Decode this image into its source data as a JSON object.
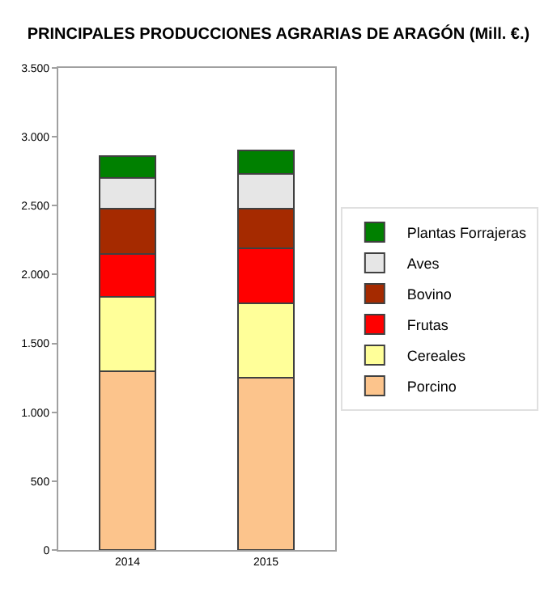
{
  "chart_data": {
    "type": "bar",
    "title": "PRINCIPALES PRODUCCIONES AGRARIAS DE ARAGÓN (Mill. €.)",
    "stacked": true,
    "legend": "right",
    "categories": [
      "2014",
      "2015"
    ],
    "series": [
      {
        "name": "Porcino",
        "color": "#fcc48c",
        "values": [
          1300,
          1250
        ]
      },
      {
        "name": "Cereales",
        "color": "#ffff99",
        "values": [
          540,
          540
        ]
      },
      {
        "name": "Frutas",
        "color": "#ff0000",
        "values": [
          310,
          400
        ]
      },
      {
        "name": "Bovino",
        "color": "#a52a00",
        "values": [
          330,
          290
        ]
      },
      {
        "name": "Aves",
        "color": "#e6e6e6",
        "values": [
          220,
          250
        ]
      },
      {
        "name": "Plantas Forrajeras",
        "color": "#008000",
        "values": [
          160,
          170
        ]
      }
    ],
    "ylim": [
      0,
      3500
    ],
    "yticks": [
      0,
      {
        "value": 500,
        "label": "500"
      },
      {
        "value": 1000,
        "label": "1.000"
      },
      {
        "value": 1500,
        "label": "1.500"
      },
      {
        "value": 2000,
        "label": "2.000"
      },
      {
        "value": 2500,
        "label": "2.500"
      },
      {
        "value": 3000,
        "label": "3.000"
      },
      {
        "value": 3500,
        "label": "3.500"
      }
    ]
  }
}
